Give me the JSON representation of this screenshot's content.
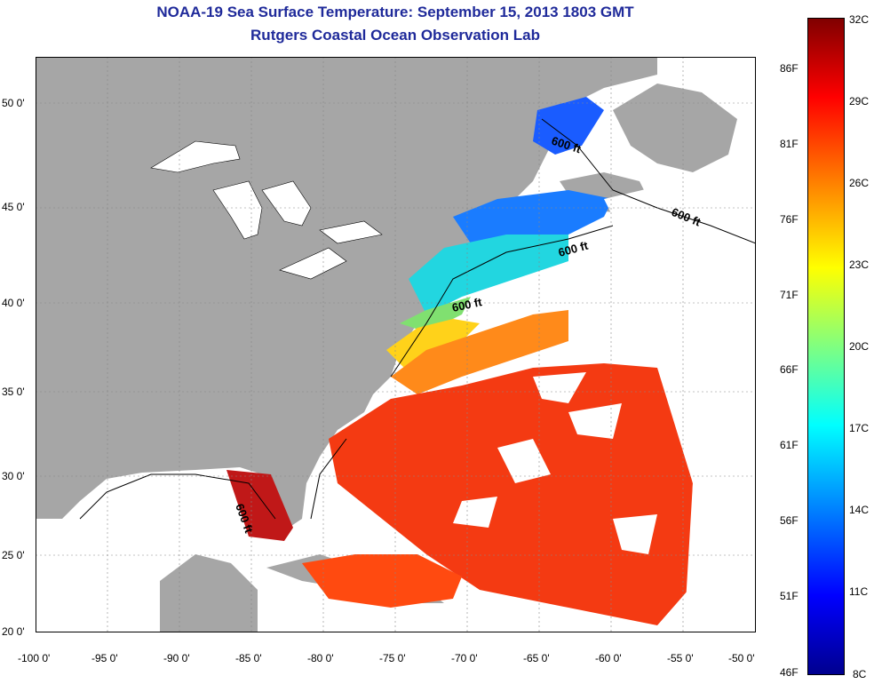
{
  "title_line1": "NOAA-19 Sea Surface Temperature:  September 15, 2013 1803 GMT",
  "title_line2": "Rutgers Coastal Ocean Observation Lab",
  "lat_labels": [
    "50 0'",
    "45 0'",
    "40 0'",
    "35 0'",
    "30 0'",
    "25 0'",
    "20 0'"
  ],
  "lon_labels": [
    "-100 0'",
    "-95 0'",
    "-90 0'",
    "-85 0'",
    "-80 0'",
    "-75 0'",
    "-70 0'",
    "-65 0'",
    "-60 0'",
    "-55 0'",
    "-50 0'"
  ],
  "colorbar": {
    "celsius": [
      "32C",
      "29C",
      "26C",
      "23C",
      "20C",
      "17C",
      "14C",
      "11C",
      "8C"
    ],
    "fahrenheit": [
      "86F",
      "81F",
      "76F",
      "71F",
      "66F",
      "61F",
      "56F",
      "51F",
      "46F"
    ]
  },
  "contour_labels": [
    "600 ft",
    "600 ft",
    "600 ft",
    "600 ft",
    "600 ft"
  ],
  "colors": {
    "land": "#a6a6a6",
    "water": "#ffffff",
    "title": "#1f2a9a",
    "grid": "#888888"
  }
}
